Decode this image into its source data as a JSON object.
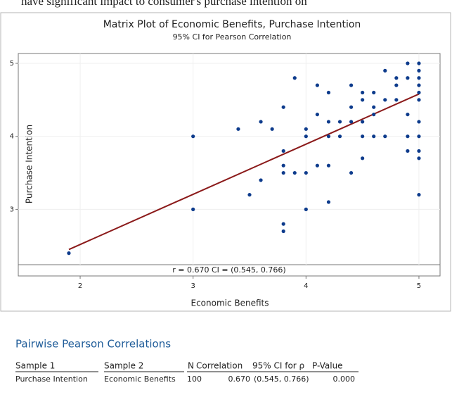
{
  "caption": "have significant impact to consumer's purchase intention on",
  "chart_data": {
    "type": "scatter",
    "title": "Matrix Plot of Economic Benefits, Purchase Intention",
    "subtitle": "95% CI for Pearson Correlation",
    "x_label": "Economic Benefits",
    "y_label": "Purchase Intention",
    "annotation": "r = 0.670  CI = (0.545, 0.766)",
    "xlim": [
      1.452,
      5.187
    ],
    "ylim": [
      2.242,
      5.135
    ],
    "xticks": [
      2,
      3,
      4,
      5
    ],
    "yticks": [
      3,
      4,
      5
    ],
    "series": [
      {
        "name": "Purchase Intention",
        "color": "#0d3b8c",
        "x": [
          1.9,
          3,
          3,
          3.4,
          3.5,
          3.6,
          3.6,
          3.7,
          3.8,
          3.8,
          3.8,
          3.8,
          3.8,
          3.8,
          3.9,
          3.9,
          4,
          4,
          4,
          4,
          4.1,
          4.1,
          4.1,
          4.2,
          4.2,
          4.2,
          4.2,
          4.2,
          4.3,
          4.3,
          4.4,
          4.4,
          4.4,
          4.4,
          4.5,
          4.5,
          4.5,
          4.5,
          4.5,
          4.6,
          4.6,
          4.6,
          4.6,
          4.7,
          4.7,
          4.7,
          4.8,
          4.8,
          4.8,
          4.9,
          4.9,
          4.9,
          4.9,
          4.9,
          5,
          5,
          5,
          5,
          5,
          5,
          5,
          5,
          5,
          5,
          5
        ],
        "y": [
          2.4,
          4,
          3,
          4.1,
          3.2,
          4.2,
          3.4,
          4.1,
          4.4,
          3.8,
          3.6,
          3.5,
          2.8,
          2.7,
          4.8,
          3.5,
          4.1,
          4,
          3.5,
          3,
          4.7,
          4.3,
          3.6,
          4.6,
          4.2,
          4,
          3.6,
          3.1,
          4.2,
          4,
          4.7,
          4.4,
          4.2,
          3.5,
          4.6,
          4.5,
          4.2,
          4,
          3.7,
          4.6,
          4.4,
          4.3,
          4,
          4.9,
          4.5,
          4,
          4.8,
          4.7,
          4.5,
          5,
          4.8,
          4.3,
          4,
          3.8,
          5,
          4.9,
          4.8,
          4.7,
          4.6,
          4.5,
          4.2,
          4,
          3.8,
          3.7,
          3.2
        ]
      }
    ],
    "fit": {
      "color": "#8b1a1a",
      "x": [
        1.9,
        5
      ],
      "y": [
        2.45,
        4.58
      ]
    }
  },
  "table": {
    "title": "Pairwise Pearson Correlations",
    "columns": [
      "Sample 1",
      "Sample 2",
      "N",
      "Correlation",
      "95% CI for ρ",
      "P-Value"
    ],
    "rows": [
      [
        "Purchase Intention",
        "Economic Benefits",
        "100",
        "0.670",
        "(0.545, 0.766)",
        "0.000"
      ]
    ]
  }
}
